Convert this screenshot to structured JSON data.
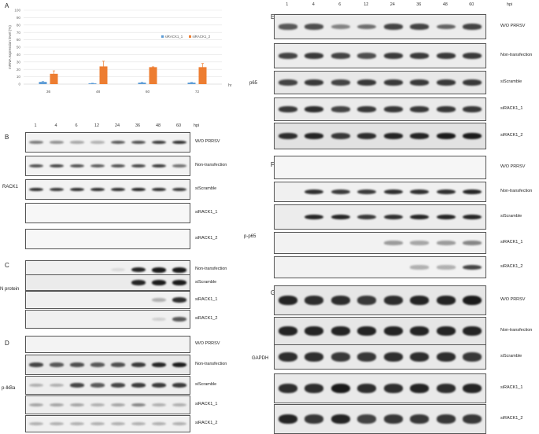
{
  "panels": {
    "A": "A",
    "B": "B",
    "C": "C",
    "D": "D",
    "E": "E",
    "F": "F",
    "G": "G"
  },
  "time_points": [
    "1",
    "4",
    "6",
    "12",
    "24",
    "36",
    "48",
    "60"
  ],
  "hpi": "hpi",
  "proteins": {
    "rack1": "RACK1",
    "n_protein": "N protein",
    "p_ikba": "p-IkBa",
    "p65": "p65",
    "p_p65": "p-p65",
    "gapdh": "GAPDH"
  },
  "row_labels": {
    "wo": "W/O PRRSV",
    "non": "Non-transfection",
    "scr": "siScramble",
    "si1": "siRACK1_1",
    "si2": "siRACK1_2"
  },
  "chart_data": {
    "type": "bar",
    "ylabel": "mRNA expression level (%)",
    "xlabel": "hr",
    "categories": [
      "36",
      "48",
      "60",
      "72"
    ],
    "ylim": [
      0,
      100
    ],
    "yticks": [
      "0",
      "10",
      "20",
      "30",
      "40",
      "50",
      "60",
      "70",
      "80",
      "90",
      "100"
    ],
    "series": [
      {
        "name": "siRACK1_1",
        "values": [
          3,
          1,
          2,
          2
        ],
        "errors": [
          0.5,
          0.3,
          0.4,
          0.4
        ],
        "color": "#5b9bd5"
      },
      {
        "name": "siRACK1_2",
        "values": [
          14,
          24,
          23,
          23
        ],
        "errors": [
          4,
          7,
          0.5,
          5
        ],
        "color": "#ed7d31"
      }
    ]
  }
}
